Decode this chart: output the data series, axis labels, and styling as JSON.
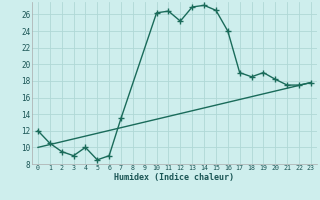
{
  "xlabel": "Humidex (Indice chaleur)",
  "background_color": "#ceeeed",
  "grid_color": "#b0d8d6",
  "line_color": "#1a6b5a",
  "xlim": [
    -0.5,
    23.5
  ],
  "ylim": [
    8,
    27.5
  ],
  "yticks": [
    8,
    10,
    12,
    14,
    16,
    18,
    20,
    22,
    24,
    26
  ],
  "xticks": [
    0,
    1,
    2,
    3,
    4,
    5,
    6,
    7,
    8,
    9,
    10,
    11,
    12,
    13,
    14,
    15,
    16,
    17,
    18,
    19,
    20,
    21,
    22,
    23
  ],
  "curve1_x": [
    0,
    1,
    2,
    3,
    4,
    5,
    6,
    7,
    10,
    11,
    12,
    13,
    14,
    15,
    16,
    17,
    18,
    19,
    20,
    21,
    22,
    23
  ],
  "curve1_y": [
    12.0,
    10.5,
    9.5,
    9.0,
    10.0,
    8.5,
    9.0,
    13.5,
    26.2,
    26.4,
    25.2,
    26.9,
    27.1,
    26.5,
    24.0,
    19.0,
    18.5,
    19.0,
    18.2,
    17.5,
    17.5,
    17.8
  ],
  "curve2_x": [
    0,
    23
  ],
  "curve2_y": [
    10.0,
    17.8
  ],
  "markersize": 4,
  "linewidth": 1.0,
  "font_family": "monospace"
}
